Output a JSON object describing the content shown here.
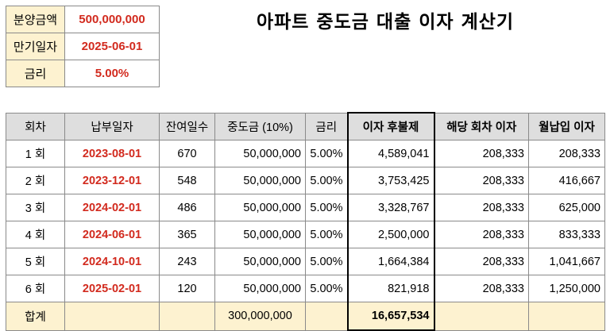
{
  "title": "아파트 중도금 대출 이자 계산기",
  "info": {
    "sale_amount_label": "분양금액",
    "sale_amount_value": "500,000,000",
    "maturity_label": "만기일자",
    "maturity_value": "2025-06-01",
    "rate_label": "금리",
    "rate_value": "5.00%"
  },
  "table": {
    "headers": {
      "round": "회차",
      "pay_date": "납부일자",
      "remaining_days": "잔여일수",
      "middle_payment": "중도금 (10%)",
      "rate": "금리",
      "deferred_interest": "이자 후불제",
      "round_interest": "해당 회차 이자",
      "monthly_interest": "월납입 이자"
    },
    "rows": [
      {
        "round": "1 회",
        "pay_date": "2023-08-01",
        "remaining_days": "670",
        "middle_payment": "50,000,000",
        "rate": "5.00%",
        "deferred_interest": "4,589,041",
        "round_interest": "208,333",
        "monthly_interest": "208,333"
      },
      {
        "round": "2 회",
        "pay_date": "2023-12-01",
        "remaining_days": "548",
        "middle_payment": "50,000,000",
        "rate": "5.00%",
        "deferred_interest": "3,753,425",
        "round_interest": "208,333",
        "monthly_interest": "416,667"
      },
      {
        "round": "3 회",
        "pay_date": "2024-02-01",
        "remaining_days": "486",
        "middle_payment": "50,000,000",
        "rate": "5.00%",
        "deferred_interest": "3,328,767",
        "round_interest": "208,333",
        "monthly_interest": "625,000"
      },
      {
        "round": "4 회",
        "pay_date": "2024-06-01",
        "remaining_days": "365",
        "middle_payment": "50,000,000",
        "rate": "5.00%",
        "deferred_interest": "2,500,000",
        "round_interest": "208,333",
        "monthly_interest": "833,333"
      },
      {
        "round": "5 회",
        "pay_date": "2024-10-01",
        "remaining_days": "243",
        "middle_payment": "50,000,000",
        "rate": "5.00%",
        "deferred_interest": "1,664,384",
        "round_interest": "208,333",
        "monthly_interest": "1,041,667"
      },
      {
        "round": "6 회",
        "pay_date": "2025-02-01",
        "remaining_days": "120",
        "middle_payment": "50,000,000",
        "rate": "5.00%",
        "deferred_interest": "821,918",
        "round_interest": "208,333",
        "monthly_interest": "1,250,000"
      }
    ],
    "total": {
      "label": "합계",
      "middle_payment": "300,000,000",
      "deferred_interest": "16,657,534"
    }
  }
}
